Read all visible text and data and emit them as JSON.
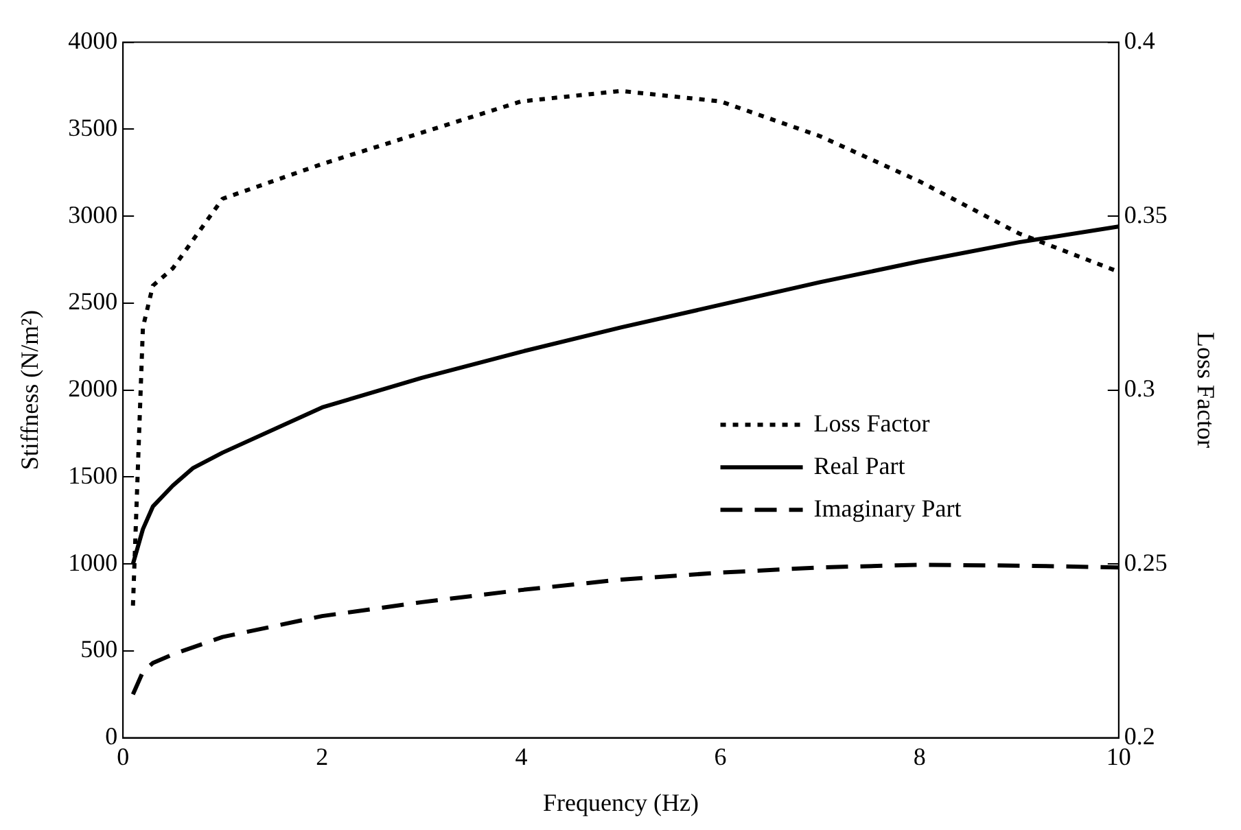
{
  "chart_data": {
    "type": "line",
    "xlabel": "Frequency (Hz)",
    "ylabel": "Stiffness (N/m²)",
    "y2label": "Loss Factor",
    "xlim": [
      0,
      10
    ],
    "xticks": [
      0,
      2,
      4,
      6,
      8,
      10
    ],
    "ylim": [
      0,
      4000
    ],
    "yticks": [
      0,
      500,
      1000,
      1500,
      2000,
      2500,
      3000,
      3500,
      4000
    ],
    "y2lim": [
      0.2,
      0.4
    ],
    "y2ticks": [
      0.2,
      0.25,
      0.3,
      0.35,
      0.4
    ],
    "legend": "right",
    "grid": false,
    "marker": "none",
    "series": [
      {
        "name": "Loss Factor",
        "color": "#000000",
        "axis": "y2",
        "line_style": "dotted",
        "x": [
          0.1,
          0.2,
          0.3,
          0.5,
          1,
          2,
          3,
          4,
          5,
          6,
          7,
          8,
          9,
          10
        ],
        "values": [
          0.238,
          0.318,
          0.33,
          0.335,
          0.355,
          0.365,
          0.374,
          0.383,
          0.386,
          0.383,
          0.373,
          0.36,
          0.345,
          0.334
        ]
      },
      {
        "name": "Real Part",
        "color": "#000000",
        "axis": "y",
        "line_style": "solid",
        "x": [
          0.1,
          0.2,
          0.3,
          0.5,
          0.7,
          1,
          2,
          3,
          4,
          5,
          6,
          7,
          8,
          9,
          10
        ],
        "values": [
          1000,
          1200,
          1330,
          1450,
          1550,
          1640,
          1900,
          2070,
          2220,
          2360,
          2490,
          2620,
          2740,
          2850,
          2940
        ]
      },
      {
        "name": "Imaginary Part",
        "color": "#000000",
        "axis": "y",
        "line_style": "dashed",
        "x": [
          0.1,
          0.2,
          0.3,
          0.5,
          1,
          2,
          3,
          4,
          5,
          6,
          7,
          8,
          9,
          10
        ],
        "values": [
          250,
          380,
          430,
          480,
          580,
          700,
          780,
          850,
          910,
          950,
          980,
          995,
          990,
          980
        ]
      }
    ]
  }
}
